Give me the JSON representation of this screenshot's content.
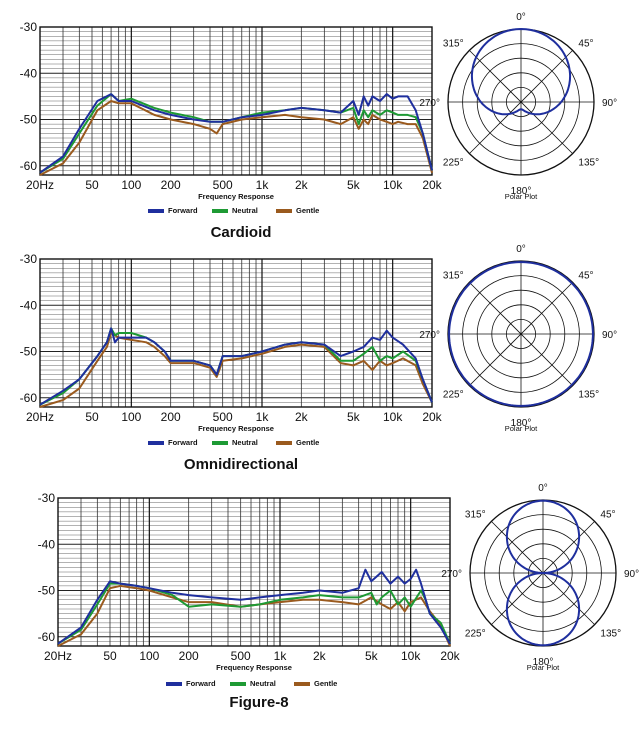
{
  "chart_data": [
    {
      "type": "line",
      "title": "Cardioid",
      "xlabel": "Frequency Response",
      "ylabel": "",
      "xscale": "log",
      "xlim": [
        20,
        20000
      ],
      "ylim": [
        -62,
        -30
      ],
      "x_tick_labels": [
        {
          "value": 20,
          "label": "20Hz"
        },
        {
          "value": 50,
          "label": "50"
        },
        {
          "value": 100,
          "label": "100"
        },
        {
          "value": 200,
          "label": "200"
        },
        {
          "value": 500,
          "label": "500"
        },
        {
          "value": 1000,
          "label": "1k"
        },
        {
          "value": 2000,
          "label": "2k"
        },
        {
          "value": 5000,
          "label": "5k"
        },
        {
          "value": 10000,
          "label": "10k"
        },
        {
          "value": 20000,
          "label": "20k"
        }
      ],
      "y_tick_labels": [
        {
          "value": -30,
          "label": "-30"
        },
        {
          "value": -40,
          "label": "-40"
        },
        {
          "value": -50,
          "label": "-50"
        },
        {
          "value": -60,
          "label": "-60"
        }
      ],
      "grid": true,
      "legend_position": "bottom",
      "series": [
        {
          "name": "Forward",
          "color": "#1f2f9e",
          "x": [
            20,
            30,
            40,
            55,
            70,
            80,
            100,
            150,
            200,
            300,
            400,
            500,
            700,
            1000,
            1500,
            2000,
            3000,
            4000,
            5000,
            5500,
            6000,
            6500,
            7000,
            8000,
            9000,
            10000,
            11000,
            13000,
            15000,
            17000,
            20000
          ],
          "y": [
            -61.5,
            -58,
            -52,
            -46,
            -44.5,
            -46,
            -46,
            -48,
            -49,
            -50,
            -50.5,
            -50.5,
            -49.5,
            -49,
            -48,
            -47.5,
            -48,
            -48.5,
            -46,
            -49,
            -45,
            -47,
            -45,
            -46,
            -44.5,
            -45.5,
            -45,
            -45,
            -48,
            -53,
            -61
          ]
        },
        {
          "name": "Neutral",
          "color": "#1e9a34",
          "x": [
            20,
            30,
            40,
            55,
            70,
            80,
            100,
            150,
            200,
            300,
            400,
            500,
            700,
            1000,
            1500,
            2000,
            3000,
            4000,
            5000,
            5500,
            6000,
            6500,
            7000,
            8000,
            9000,
            10000,
            11000,
            13000,
            15000,
            17000,
            20000
          ],
          "y": [
            -61.5,
            -58.5,
            -53,
            -47,
            -44.5,
            -46,
            -45.5,
            -47.5,
            -48.5,
            -49.5,
            -50.5,
            -50.5,
            -49.5,
            -48.5,
            -48,
            -47.5,
            -48,
            -48.5,
            -47.5,
            -51,
            -48,
            -49.5,
            -48,
            -49,
            -48,
            -48.5,
            -49,
            -49,
            -49.5,
            -53,
            -61
          ]
        },
        {
          "name": "Gentle",
          "color": "#9a5a1e",
          "x": [
            20,
            30,
            40,
            55,
            70,
            80,
            100,
            150,
            200,
            300,
            400,
            450,
            500,
            700,
            1000,
            1500,
            2000,
            3000,
            4000,
            5000,
            5500,
            6000,
            6500,
            7000,
            8000,
            9000,
            10000,
            11000,
            13000,
            15000,
            17000,
            20000
          ],
          "y": [
            -62,
            -59.5,
            -55,
            -48,
            -46,
            -46.5,
            -46.5,
            -49,
            -50,
            -51,
            -52,
            -53,
            -51,
            -50,
            -49.5,
            -49,
            -49.5,
            -50,
            -51,
            -49.5,
            -52,
            -50,
            -51,
            -49,
            -50,
            -50.5,
            -51,
            -50.5,
            -51,
            -51,
            -54,
            -61.5
          ]
        }
      ],
      "polar": {
        "pattern": "cardioid",
        "label": "Polar Plot",
        "color": "#1f2f9e",
        "angle_labels": [
          "0°",
          "45°",
          "90°",
          "135°",
          "180°",
          "225°",
          "270°",
          "315°"
        ]
      }
    },
    {
      "type": "line",
      "title": "Omnidirectional",
      "xlabel": "Frequency Response",
      "ylabel": "",
      "xscale": "log",
      "xlim": [
        20,
        20000
      ],
      "ylim": [
        -62,
        -30
      ],
      "x_tick_labels": [
        {
          "value": 20,
          "label": "20Hz"
        },
        {
          "value": 50,
          "label": "50"
        },
        {
          "value": 100,
          "label": "100"
        },
        {
          "value": 200,
          "label": "200"
        },
        {
          "value": 500,
          "label": "500"
        },
        {
          "value": 1000,
          "label": "1k"
        },
        {
          "value": 2000,
          "label": "2k"
        },
        {
          "value": 5000,
          "label": "5k"
        },
        {
          "value": 10000,
          "label": "10k"
        },
        {
          "value": 20000,
          "label": "20k"
        }
      ],
      "y_tick_labels": [
        {
          "value": -30,
          "label": "-30"
        },
        {
          "value": -40,
          "label": "-40"
        },
        {
          "value": -50,
          "label": "-50"
        },
        {
          "value": -60,
          "label": "-60"
        }
      ],
      "grid": true,
      "legend_position": "bottom",
      "series": [
        {
          "name": "Forward",
          "color": "#1f2f9e",
          "x": [
            20,
            30,
            40,
            55,
            65,
            70,
            75,
            80,
            100,
            130,
            150,
            180,
            200,
            300,
            400,
            450,
            500,
            700,
            1000,
            1500,
            2000,
            3000,
            4000,
            5000,
            6000,
            7000,
            8000,
            9000,
            10000,
            12000,
            15000,
            17000,
            20000
          ],
          "y": [
            -61.5,
            -58.5,
            -56,
            -51,
            -48,
            -45,
            -48,
            -47,
            -47,
            -47,
            -48,
            -50,
            -52,
            -52,
            -53,
            -55,
            -51,
            -51,
            -50,
            -48.5,
            -48,
            -48.5,
            -51,
            -50,
            -49,
            -47,
            -47.5,
            -45.5,
            -47,
            -48.5,
            -51.5,
            -56,
            -61
          ]
        },
        {
          "name": "Neutral",
          "color": "#1e9a34",
          "x": [
            20,
            30,
            40,
            55,
            65,
            70,
            75,
            80,
            100,
            130,
            150,
            180,
            200,
            300,
            400,
            450,
            500,
            700,
            1000,
            1500,
            2000,
            3000,
            4000,
            5000,
            6000,
            7000,
            8000,
            9000,
            10000,
            12000,
            15000,
            17000,
            20000
          ],
          "y": [
            -61.5,
            -59,
            -56,
            -51,
            -48,
            -45,
            -46.5,
            -46,
            -46,
            -47,
            -48,
            -50,
            -52,
            -52,
            -53,
            -55,
            -51,
            -51,
            -50,
            -48.5,
            -48,
            -48.5,
            -52,
            -52,
            -50.5,
            -49,
            -52,
            -51,
            -51.5,
            -50,
            -52,
            -56,
            -61
          ]
        },
        {
          "name": "Gentle",
          "color": "#9a5a1e",
          "x": [
            20,
            30,
            40,
            55,
            65,
            70,
            75,
            80,
            100,
            130,
            150,
            180,
            200,
            300,
            400,
            450,
            500,
            700,
            1000,
            1500,
            2000,
            3000,
            4000,
            5000,
            6000,
            7000,
            8000,
            9000,
            10000,
            12000,
            15000,
            17000,
            20000
          ],
          "y": [
            -62,
            -60.5,
            -58,
            -52,
            -49,
            -46,
            -46.5,
            -47,
            -47.5,
            -48,
            -49,
            -51,
            -52.5,
            -52.5,
            -53.5,
            -55.5,
            -52,
            -51.5,
            -50.5,
            -49,
            -48.5,
            -49,
            -52.5,
            -53,
            -52,
            -54,
            -52,
            -53,
            -52.5,
            -51.5,
            -53,
            -57,
            -61
          ]
        }
      ],
      "polar": {
        "pattern": "omni",
        "label": "Polar Plot",
        "color": "#1f2f9e",
        "angle_labels": [
          "0°",
          "45°",
          "90°",
          "135°",
          "180°",
          "225°",
          "270°",
          "315°"
        ]
      }
    },
    {
      "type": "line",
      "title": "Figure-8",
      "xlabel": "Frequency Response",
      "ylabel": "",
      "xscale": "log",
      "xlim": [
        20,
        20000
      ],
      "ylim": [
        -62,
        -30
      ],
      "x_tick_labels": [
        {
          "value": 20,
          "label": "20Hz"
        },
        {
          "value": 50,
          "label": "50"
        },
        {
          "value": 100,
          "label": "100"
        },
        {
          "value": 200,
          "label": "200"
        },
        {
          "value": 500,
          "label": "500"
        },
        {
          "value": 1000,
          "label": "1k"
        },
        {
          "value": 2000,
          "label": "2k"
        },
        {
          "value": 5000,
          "label": "5k"
        },
        {
          "value": 10000,
          "label": "10k"
        },
        {
          "value": 20000,
          "label": "20k"
        }
      ],
      "y_tick_labels": [
        {
          "value": -30,
          "label": "-30"
        },
        {
          "value": -40,
          "label": "-40"
        },
        {
          "value": -50,
          "label": "-50"
        },
        {
          "value": -60,
          "label": "-60"
        }
      ],
      "grid": true,
      "legend_position": "bottom",
      "series": [
        {
          "name": "Forward",
          "color": "#1f2f9e",
          "x": [
            20,
            30,
            40,
            50,
            60,
            80,
            100,
            150,
            200,
            300,
            500,
            700,
            1000,
            1500,
            2000,
            3000,
            4000,
            4500,
            5000,
            6000,
            7000,
            8000,
            9000,
            10000,
            11000,
            12000,
            14000,
            17000,
            20000
          ],
          "y": [
            -61.5,
            -58,
            -52,
            -48,
            -48.5,
            -49,
            -49.5,
            -50.5,
            -51,
            -51.5,
            -52,
            -51.5,
            -51,
            -50.5,
            -50,
            -50.5,
            -49.5,
            -45.5,
            -48,
            -46,
            -48.5,
            -47,
            -48.5,
            -47.5,
            -45.5,
            -48.5,
            -55,
            -58,
            -61.5
          ]
        },
        {
          "name": "Neutral",
          "color": "#1e9a34",
          "x": [
            20,
            30,
            40,
            50,
            60,
            80,
            100,
            150,
            200,
            300,
            500,
            700,
            1000,
            1500,
            2000,
            3000,
            4000,
            5000,
            5500,
            6000,
            7000,
            8000,
            9000,
            10000,
            12000,
            13000,
            14000,
            17000,
            20000
          ],
          "y": [
            -61.5,
            -58.5,
            -53,
            -48.5,
            -48.5,
            -49,
            -49.5,
            -51,
            -53.5,
            -53,
            -53.5,
            -53,
            -52,
            -51.5,
            -51,
            -51.5,
            -51.5,
            -50.5,
            -53,
            -51.5,
            -50,
            -53,
            -51.5,
            -53.5,
            -50,
            -52,
            -55,
            -57,
            -61.5
          ]
        },
        {
          "name": "Gentle",
          "color": "#9a5a1e",
          "x": [
            20,
            30,
            40,
            50,
            60,
            80,
            100,
            150,
            200,
            300,
            500,
            700,
            1000,
            1500,
            2000,
            3000,
            4000,
            5000,
            6000,
            7000,
            8000,
            9000,
            10000,
            12000,
            14000,
            17000,
            20000
          ],
          "y": [
            -62,
            -59.5,
            -55,
            -49.5,
            -49,
            -49.5,
            -50,
            -51.5,
            -52.5,
            -52.5,
            -53.5,
            -53,
            -52.5,
            -52,
            -52,
            -52.5,
            -53,
            -51.5,
            -53,
            -54,
            -52.5,
            -54.5,
            -52.5,
            -51.5,
            -54.5,
            -57.5,
            -62
          ]
        }
      ],
      "polar": {
        "pattern": "figure8",
        "label": "Polar Plot",
        "color": "#1f2f9e",
        "angle_labels": [
          "0°",
          "45°",
          "90°",
          "135°",
          "180°",
          "225°",
          "270°",
          "315°"
        ]
      }
    }
  ]
}
